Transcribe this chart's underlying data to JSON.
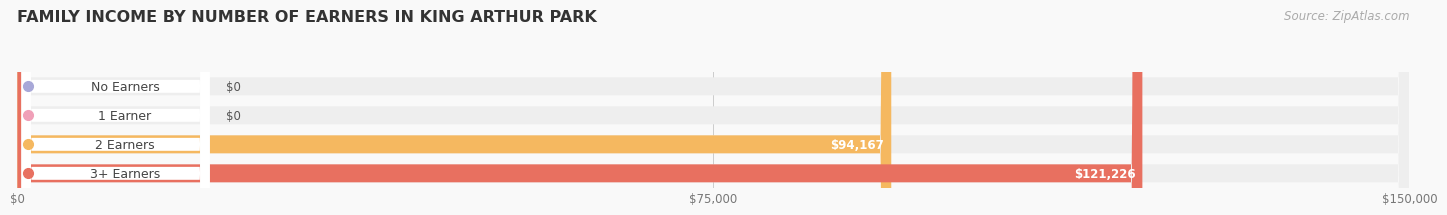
{
  "title": "FAMILY INCOME BY NUMBER OF EARNERS IN KING ARTHUR PARK",
  "source": "Source: ZipAtlas.com",
  "categories": [
    "No Earners",
    "1 Earner",
    "2 Earners",
    "3+ Earners"
  ],
  "values": [
    0,
    0,
    94167,
    121226
  ],
  "value_labels": [
    "$0",
    "$0",
    "$94,167",
    "$121,226"
  ],
  "bar_colors": [
    "#a8a8d8",
    "#f0a0b8",
    "#f5b860",
    "#e87060"
  ],
  "bar_bg_color": "#eeeeee",
  "background_color": "#f9f9f9",
  "label_text_color": "#444444",
  "bar_label_white": "#ffffff",
  "bar_label_dark": "#555555",
  "x_max": 150000,
  "x_ticks": [
    0,
    75000,
    150000
  ],
  "x_tick_labels": [
    "$0",
    "$75,000",
    "$150,000"
  ],
  "title_color": "#333333",
  "source_color": "#aaaaaa",
  "title_fontsize": 11.5,
  "source_fontsize": 8.5,
  "bar_height": 0.62,
  "figsize": [
    14.06,
    2.32
  ]
}
